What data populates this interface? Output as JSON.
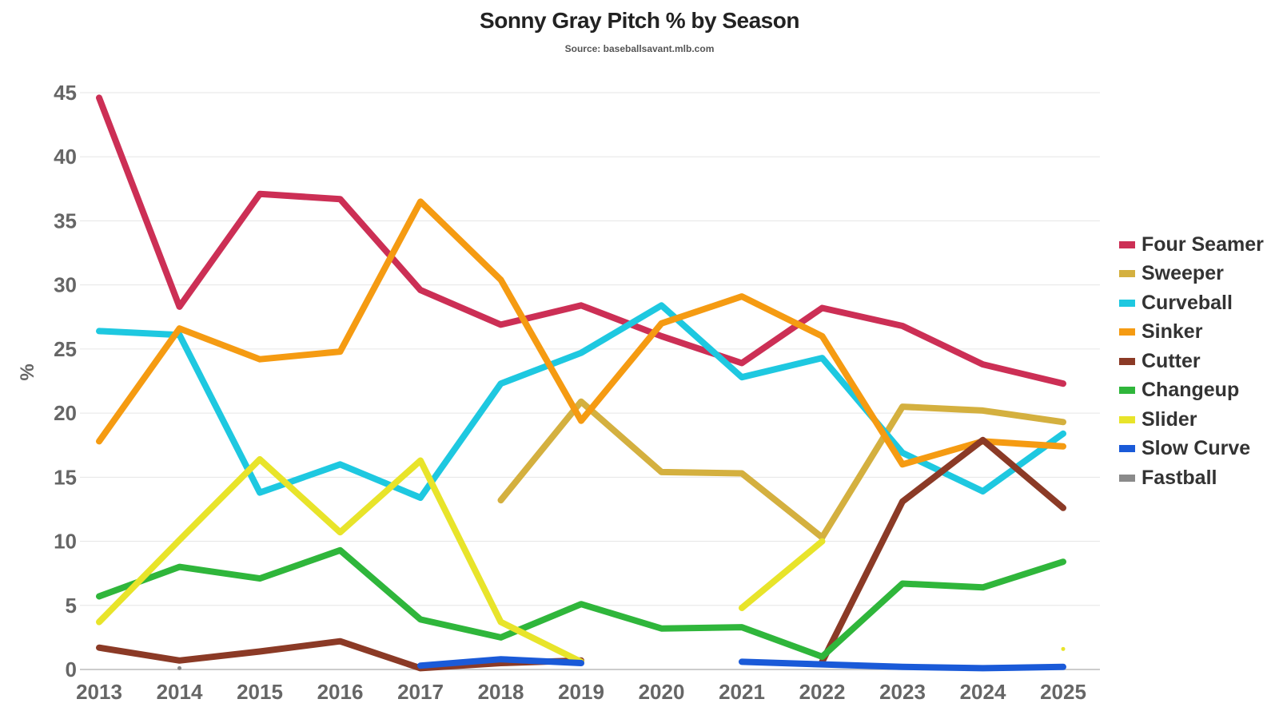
{
  "chart_data": {
    "type": "line",
    "title": "Sonny Gray Pitch % by Season",
    "subtitle": "Source: baseballsavant.mlb.com",
    "xlabel": "",
    "ylabel": "%",
    "ylim": [
      0,
      45
    ],
    "yticks": [
      "0",
      "5",
      "10",
      "15",
      "20",
      "25",
      "30",
      "35",
      "40",
      "45"
    ],
    "grid": true,
    "legend_position": "right",
    "x": [
      "2013",
      "2014",
      "2015",
      "2016",
      "2017",
      "2018",
      "2019",
      "2020",
      "2021",
      "2022",
      "2023",
      "2024",
      "2025"
    ],
    "series": [
      {
        "name": "Four Seamer",
        "color": "#cc2f55",
        "values": [
          44.6,
          28.3,
          37.1,
          36.7,
          29.6,
          26.9,
          28.4,
          26.0,
          23.9,
          28.2,
          26.8,
          23.8,
          22.3
        ]
      },
      {
        "name": "Sweeper",
        "color": "#d4b03f",
        "values": [
          null,
          null,
          null,
          null,
          null,
          13.2,
          20.9,
          15.4,
          15.3,
          10.3,
          20.5,
          20.2,
          19.3
        ]
      },
      {
        "name": "Curveball",
        "color": "#1ec8e0",
        "values": [
          26.4,
          26.1,
          13.8,
          16.0,
          13.4,
          22.3,
          24.7,
          28.4,
          22.8,
          24.3,
          16.9,
          13.9,
          18.4
        ]
      },
      {
        "name": "Sinker",
        "color": "#f59b12",
        "values": [
          17.8,
          26.6,
          24.2,
          24.8,
          36.5,
          30.4,
          19.4,
          27.0,
          29.1,
          26.0,
          16.0,
          17.8,
          17.4
        ]
      },
      {
        "name": "Cutter",
        "color": "#8b3a26",
        "values": [
          1.7,
          0.7,
          1.4,
          2.2,
          0.1,
          0.5,
          0.7,
          null,
          null,
          0.6,
          13.1,
          17.9,
          12.6
        ]
      },
      {
        "name": "Changeup",
        "color": "#2fb63b",
        "values": [
          5.7,
          8.0,
          7.1,
          9.3,
          3.9,
          2.5,
          5.1,
          3.2,
          3.3,
          1.0,
          6.7,
          6.4,
          8.4
        ]
      },
      {
        "name": "Slider",
        "color": "#e8e42a",
        "values": [
          3.7,
          10.1,
          16.4,
          10.7,
          16.3,
          3.7,
          0.6,
          null,
          4.8,
          10.0,
          null,
          null,
          1.6
        ]
      },
      {
        "name": "Slow Curve",
        "color": "#1a5ad8",
        "values": [
          null,
          null,
          null,
          null,
          0.3,
          0.8,
          0.5,
          null,
          0.6,
          0.4,
          0.2,
          0.1,
          0.2
        ]
      },
      {
        "name": "Fastball",
        "color": "#8a8a8a",
        "values": [
          null,
          0.1,
          null,
          null,
          null,
          null,
          null,
          null,
          null,
          null,
          null,
          null,
          null
        ]
      }
    ]
  }
}
